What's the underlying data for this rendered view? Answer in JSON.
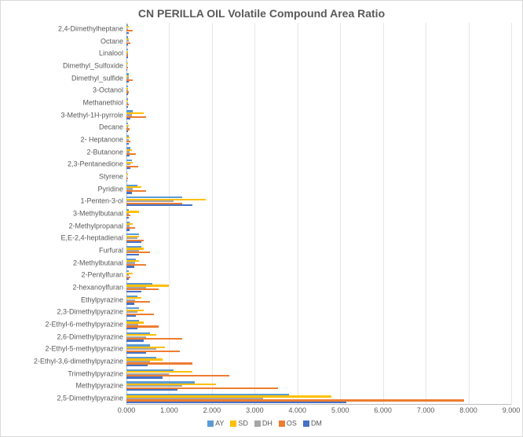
{
  "chart": {
    "type": "bar-horizontal-grouped",
    "title": "CN PERILLA OIL Volatile Compound  Area Ratio",
    "title_fontsize": 14,
    "label_fontsize": 9,
    "background_color": "#ffffff",
    "grid_color": "#e6e6e6",
    "axis_color": "#bfbfbf",
    "x_min": 0.0,
    "x_max": 9.0,
    "x_tick_step": 1.0,
    "x_tick_format": "0.000",
    "series": [
      {
        "key": "AY",
        "label": "AY",
        "color": "#5b9bd5"
      },
      {
        "key": "SD",
        "label": "SD",
        "color": "#ffc000"
      },
      {
        "key": "DH",
        "label": "DH",
        "color": "#a5a5a5"
      },
      {
        "key": "OS",
        "label": "OS",
        "color": "#ed7d31"
      },
      {
        "key": "DM",
        "label": "DM",
        "color": "#4472c4"
      }
    ],
    "categories": [
      {
        "name": "2,4-Dimethylheptane",
        "AY": 0.03,
        "SD": 0.05,
        "DH": 0.04,
        "OS": 0.15,
        "DM": 0.05
      },
      {
        "name": "Octane",
        "AY": 0.04,
        "SD": 0.06,
        "DH": 0.05,
        "OS": 0.1,
        "DM": 0.04
      },
      {
        "name": "Linalool",
        "AY": 0.03,
        "SD": 0.04,
        "DH": 0.03,
        "OS": 0.04,
        "DM": 0.03
      },
      {
        "name": "Dimethyl_Sulfoxide",
        "AY": 0.02,
        "SD": 0.03,
        "DH": 0.02,
        "OS": 0.03,
        "DM": 0.02
      },
      {
        "name": "Dimethyl_sulfide",
        "AY": 0.05,
        "SD": 0.06,
        "DH": 0.05,
        "OS": 0.15,
        "DM": 0.05
      },
      {
        "name": "3-Octanol",
        "AY": 0.03,
        "SD": 0.04,
        "DH": 0.03,
        "OS": 0.05,
        "DM": 0.03
      },
      {
        "name": "Methanethiol",
        "AY": 0.03,
        "SD": 0.04,
        "DH": 0.03,
        "OS": 0.05,
        "DM": 0.03
      },
      {
        "name": "3-Methyl-1H-pyrrole",
        "AY": 0.15,
        "SD": 0.4,
        "DH": 0.12,
        "OS": 0.45,
        "DM": 0.1
      },
      {
        "name": "Decane",
        "AY": 0.04,
        "SD": 0.05,
        "DH": 0.04,
        "OS": 0.08,
        "DM": 0.04
      },
      {
        "name": "2- Heptanone",
        "AY": 0.06,
        "SD": 0.08,
        "DH": 0.06,
        "OS": 0.1,
        "DM": 0.05
      },
      {
        "name": "2-Butanone",
        "AY": 0.1,
        "SD": 0.12,
        "DH": 0.08,
        "OS": 0.22,
        "DM": 0.08
      },
      {
        "name": "2,3-Pentanedione",
        "AY": 0.12,
        "SD": 0.15,
        "DH": 0.1,
        "OS": 0.28,
        "DM": 0.1
      },
      {
        "name": "Styrene",
        "AY": 0.02,
        "SD": 0.03,
        "DH": 0.02,
        "OS": 0.04,
        "DM": 0.02
      },
      {
        "name": "Pyridine",
        "AY": 0.25,
        "SD": 0.35,
        "DH": 0.15,
        "OS": 0.45,
        "DM": 0.12
      },
      {
        "name": "1-Penten-3-ol",
        "AY": 1.3,
        "SD": 1.85,
        "DH": 1.1,
        "OS": 1.3,
        "DM": 1.55
      },
      {
        "name": "3-Methylbutanal",
        "AY": 0.05,
        "SD": 0.3,
        "DH": 0.05,
        "OS": 0.1,
        "DM": 0.05
      },
      {
        "name": "2-Methylpropanal",
        "AY": 0.08,
        "SD": 0.15,
        "DH": 0.08,
        "OS": 0.2,
        "DM": 0.08
      },
      {
        "name": "E,E-2,4-heptadienal",
        "AY": 0.3,
        "SD": 0.3,
        "DH": 0.25,
        "OS": 0.4,
        "DM": 0.35
      },
      {
        "name": "Furfural",
        "AY": 0.35,
        "SD": 0.4,
        "DH": 0.3,
        "OS": 0.55,
        "DM": 0.3
      },
      {
        "name": "2-Methylbutanal",
        "AY": 0.22,
        "SD": 0.3,
        "DH": 0.2,
        "OS": 0.45,
        "DM": 0.18
      },
      {
        "name": "2-Pentylfuran",
        "AY": 0.05,
        "SD": 0.15,
        "DH": 0.05,
        "OS": 0.1,
        "DM": 0.05
      },
      {
        "name": "2-hexanoylfuran",
        "AY": 0.6,
        "SD": 1.0,
        "DH": 0.45,
        "OS": 0.75,
        "DM": 0.35
      },
      {
        "name": "Ethylpyrazine",
        "AY": 0.25,
        "SD": 0.35,
        "DH": 0.2,
        "OS": 0.55,
        "DM": 0.18
      },
      {
        "name": "2,3-Dimethylpyrazine",
        "AY": 0.3,
        "SD": 0.4,
        "DH": 0.25,
        "OS": 0.65,
        "DM": 0.22
      },
      {
        "name": "2-Ethyl-6-methylpyrazine",
        "AY": 0.3,
        "SD": 0.4,
        "DH": 0.28,
        "OS": 0.75,
        "DM": 0.25
      },
      {
        "name": "2,6-Dimethylpyrazine",
        "AY": 0.55,
        "SD": 0.7,
        "DH": 0.45,
        "OS": 1.3,
        "DM": 0.4
      },
      {
        "name": "2-Ethyl-5-methylpyrazine",
        "AY": 0.55,
        "SD": 0.9,
        "DH": 0.7,
        "OS": 1.25,
        "DM": 0.45
      },
      {
        "name": "2-Ethyl-3,6-dimethylpyrazine",
        "AY": 0.7,
        "SD": 0.85,
        "DH": 0.55,
        "OS": 1.55,
        "DM": 0.5
      },
      {
        "name": "Trimethylpyrazine",
        "AY": 1.1,
        "SD": 1.55,
        "DH": 1.0,
        "OS": 2.4,
        "DM": 0.85
      },
      {
        "name": "Methylpyrazine",
        "AY": 1.6,
        "SD": 2.1,
        "DH": 1.3,
        "OS": 3.55,
        "DM": 1.2
      },
      {
        "name": "2,5-Dimethylpyrazine",
        "AY": 3.8,
        "SD": 4.8,
        "DH": 3.2,
        "OS": 7.9,
        "DM": 5.15
      }
    ]
  }
}
